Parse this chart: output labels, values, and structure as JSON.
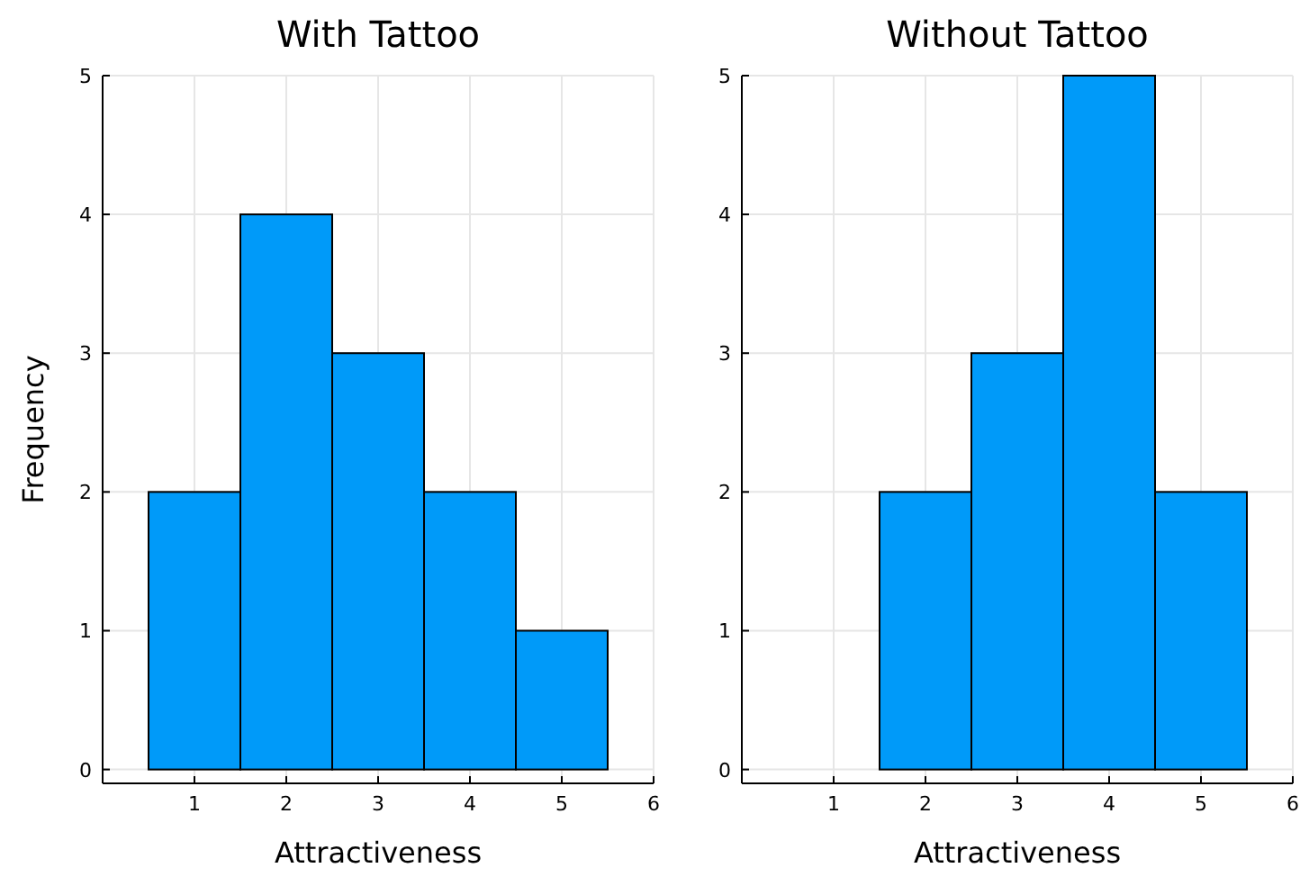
{
  "chart_data": [
    {
      "type": "histogram",
      "title": "With Tattoo",
      "xlabel": "Attractiveness",
      "ylabel": "Frequency",
      "bins": [
        0.5,
        1.5,
        2.5,
        3.5,
        4.5,
        5.5
      ],
      "values": [
        2,
        4,
        3,
        2,
        1
      ],
      "color": "#009af9",
      "xlim": [
        0,
        6
      ],
      "xticks": [
        1,
        2,
        3,
        4,
        5,
        6
      ],
      "ylim": [
        -0.1,
        5
      ],
      "yticks": [
        0,
        1,
        2,
        3,
        4,
        5
      ],
      "grid": true
    },
    {
      "type": "histogram",
      "title": "Without Tattoo",
      "xlabel": "Attractiveness",
      "bins": [
        0.5,
        1.5,
        2.5,
        3.5,
        4.5,
        5.5
      ],
      "values": [
        0,
        2,
        3,
        5,
        2
      ],
      "color": "#009af9",
      "xlim": [
        0,
        6
      ],
      "xticks": [
        1,
        2,
        3,
        4,
        5,
        6
      ],
      "ylim": [
        -0.1,
        5
      ],
      "yticks": [
        0,
        1,
        2,
        3,
        4,
        5
      ],
      "grid": true
    }
  ]
}
